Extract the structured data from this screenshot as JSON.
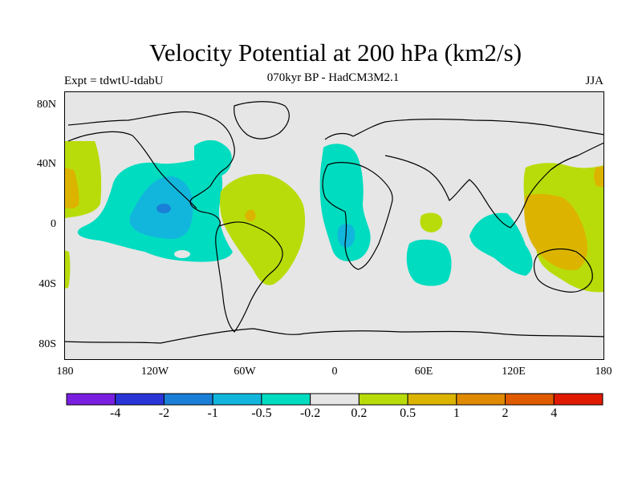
{
  "figure": {
    "title": "Velocity Potential at 200 hPa (km2/s)",
    "subtitle": "070kyr BP - HadCM3M2.1",
    "experiment": "Expt = tdwtU-tdabU",
    "season": "JJA"
  },
  "axes": {
    "lat_labels": [
      "80N",
      "40N",
      "0",
      "40S",
      "80S"
    ],
    "lon_labels": [
      "180",
      "120W",
      "60W",
      "0",
      "60E",
      "120E",
      "180"
    ]
  },
  "colorbar": {
    "colors": [
      "#7a1fe0",
      "#2a35d8",
      "#1a7fd6",
      "#12b6dc",
      "#00dcc0",
      "#e6e6e6",
      "#b8dc0a",
      "#dcb400",
      "#e08a00",
      "#e05a00",
      "#e01a00"
    ],
    "labels": [
      "-4",
      "-2",
      "-1",
      "-0.5",
      "-0.2",
      "0.2",
      "0.5",
      "1",
      "2",
      "4"
    ]
  },
  "chart_data": {
    "type": "heatmap",
    "title": "Velocity Potential at 200 hPa (km2/s)",
    "subtitle": "070kyr BP - HadCM3M2.1",
    "variable": "velocity potential anomaly",
    "units": "km2/s",
    "lon_range": [
      -180,
      180
    ],
    "lat_range": [
      -90,
      90
    ],
    "levels": [
      -4,
      -2,
      -1,
      -0.5,
      -0.2,
      0.2,
      0.5,
      1,
      2,
      4
    ],
    "regions": [
      {
        "name": "east-pacific-negative-anomaly",
        "class": "-0.5 to -0.2",
        "center": [
          -115,
          10
        ]
      },
      {
        "name": "east-pacific-core",
        "class": "-1 to -0.5",
        "center": [
          -110,
          5
        ]
      },
      {
        "name": "east-pacific-minimum",
        "class": "-2 to -1",
        "center": [
          -120,
          10
        ]
      },
      {
        "name": "north-atlantic-negative",
        "class": "-0.5 to -0.2",
        "center": [
          -70,
          45
        ]
      },
      {
        "name": "africa-negative",
        "class": "-0.5 to -0.2",
        "center": [
          10,
          10
        ]
      },
      {
        "name": "africa-core",
        "class": "-1 to -0.5",
        "center": [
          5,
          -10
        ]
      },
      {
        "name": "south-indian-negative",
        "class": "-0.5 to -0.2",
        "center": [
          60,
          -25
        ]
      },
      {
        "name": "maritime-negative",
        "class": "-0.5 to -0.2",
        "center": [
          110,
          -10
        ]
      },
      {
        "name": "south-america-positive",
        "class": "0.2 to 0.5",
        "center": [
          -50,
          5
        ]
      },
      {
        "name": "indian-ocean-positive",
        "class": "0.2 to 0.5",
        "center": [
          58,
          1
        ]
      },
      {
        "name": "west-pacific-positive",
        "class": "0.2 to 0.5",
        "center": [
          155,
          15
        ]
      },
      {
        "name": "west-pacific-core",
        "class": "0.5 to 1",
        "center": [
          150,
          0
        ]
      },
      {
        "name": "dateline-positive",
        "class": "0.2 to 0.5",
        "center": [
          -175,
          35
        ]
      }
    ]
  }
}
